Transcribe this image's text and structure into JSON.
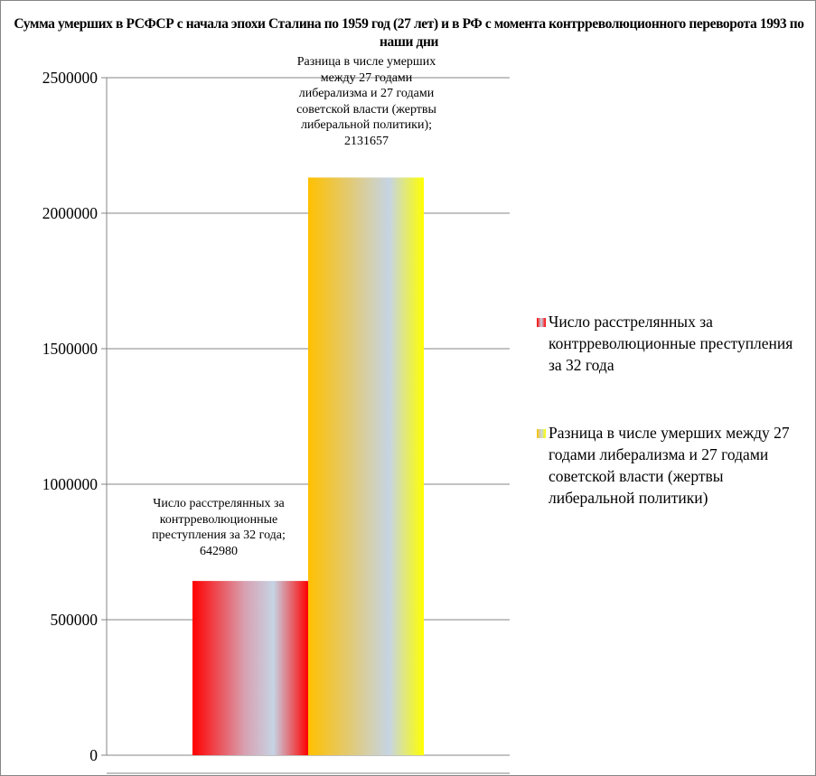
{
  "chart_data": {
    "type": "bar",
    "title": "Сумма умерших в РСФСР с начала эпохи Сталина по 1959 год (27 лет) и в РФ с момента контрреволюционного переворота 1993 по наши дни",
    "xlabel": "",
    "ylabel": "",
    "ylim": [
      0,
      2500000
    ],
    "yticks": [
      "0",
      "500000",
      "1000000",
      "1500000",
      "2000000",
      "2500000"
    ],
    "grid": true,
    "legend_position": "right",
    "series": [
      {
        "name": "Число расстрелянных за контрреволюционные преступления за 32 года",
        "values": [
          642980
        ],
        "color": "#ff0000",
        "data_label": "Число расстрелянных за контрреволюционные преступления за 32 года; 642980"
      },
      {
        "name": "Разница в числе умерших между 27 годами либерализма и 27 годами советской власти (жертвы либеральной политики)",
        "values": [
          2131657
        ],
        "color": "#ffc000",
        "data_label": "Разница в числе умерших между 27 годами либерализма и 27 годами советской власти (жертвы либеральной политики); 2131657"
      }
    ]
  }
}
